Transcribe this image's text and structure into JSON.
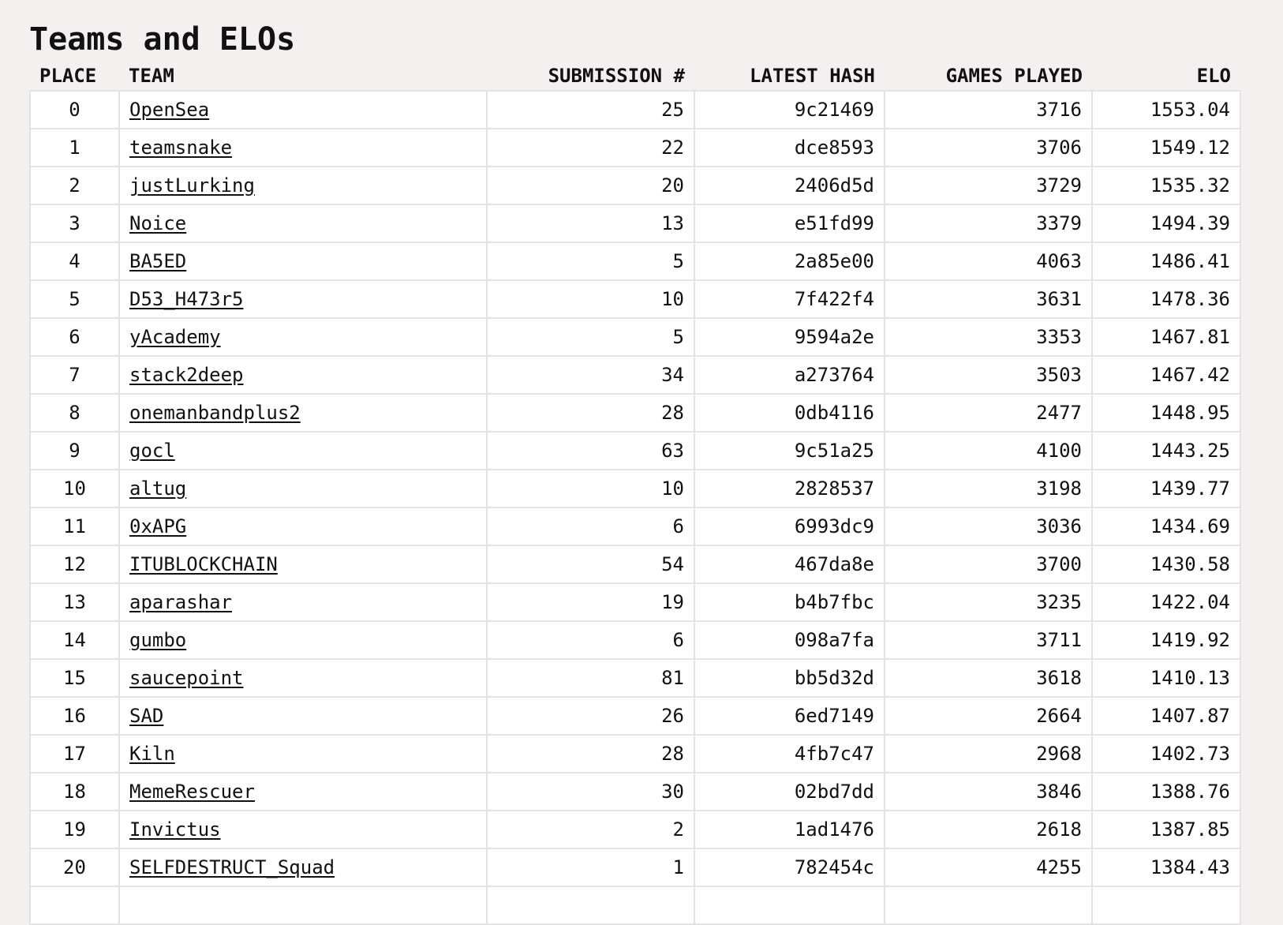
{
  "title": "Teams and ELOs",
  "table": {
    "headers": [
      "PLACE",
      "TEAM",
      "SUBMISSION #",
      "LATEST HASH",
      "GAMES PLAYED",
      "ELO"
    ],
    "rows": [
      [
        0,
        "OpenSea",
        25,
        "9c21469",
        3716,
        1553.04
      ],
      [
        1,
        "teamsnake",
        22,
        "dce8593",
        3706,
        1549.12
      ],
      [
        2,
        "justLurking",
        20,
        "2406d5d",
        3729,
        1535.32
      ],
      [
        3,
        "Noice",
        13,
        "e51fd99",
        3379,
        1494.39
      ],
      [
        4,
        "BA5ED",
        5,
        "2a85e00",
        4063,
        1486.41
      ],
      [
        5,
        "D53_H473r5",
        10,
        "7f422f4",
        3631,
        1478.36
      ],
      [
        6,
        "yAcademy",
        5,
        "9594a2e",
        3353,
        1467.81
      ],
      [
        7,
        "stack2deep",
        34,
        "a273764",
        3503,
        1467.42
      ],
      [
        8,
        "onemanbandplus2",
        28,
        "0db4116",
        2477,
        1448.95
      ],
      [
        9,
        "gocl",
        63,
        "9c51a25",
        4100,
        1443.25
      ],
      [
        10,
        "altug",
        10,
        "2828537",
        3198,
        1439.77
      ],
      [
        11,
        "0xAPG",
        6,
        "6993dc9",
        3036,
        1434.69
      ],
      [
        12,
        "ITUBLOCKCHAIN",
        54,
        "467da8e",
        3700,
        1430.58
      ],
      [
        13,
        "aparashar",
        19,
        "b4b7fbc",
        3235,
        1422.04
      ],
      [
        14,
        "gumbo",
        6,
        "098a7fa",
        3711,
        1419.92
      ],
      [
        15,
        "saucepoint",
        81,
        "bb5d32d",
        3618,
        1410.13
      ],
      [
        16,
        "SAD",
        26,
        "6ed7149",
        2664,
        1407.87
      ],
      [
        17,
        "Kiln",
        28,
        "4fb7c47",
        2968,
        1402.73
      ],
      [
        18,
        "MemeRescuer",
        30,
        "02bd7dd",
        3846,
        1388.76
      ],
      [
        19,
        "Invictus",
        2,
        "1ad1476",
        2618,
        1387.85
      ],
      [
        20,
        "SELFDESTRUCT_Squad",
        1,
        "782454c",
        4255,
        1384.43
      ]
    ]
  }
}
